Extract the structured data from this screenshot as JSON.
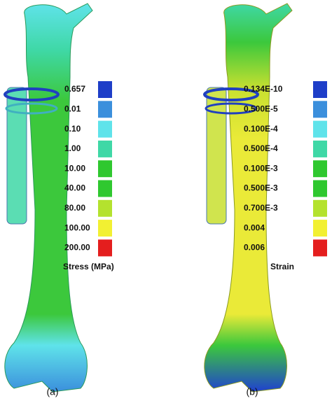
{
  "panels": [
    {
      "label": "(a)",
      "legend_title": "Stress (MPa)",
      "legend": [
        {
          "label": "0.657",
          "color": "#1e3ec8"
        },
        {
          "label": "0.01",
          "color": "#3b8fdc"
        },
        {
          "label": "0.10",
          "color": "#5fe3ea"
        },
        {
          "label": "1.00",
          "color": "#3fd8a6"
        },
        {
          "label": "10.00",
          "color": "#2fc82f"
        },
        {
          "label": "40.00",
          "color": "#2fc82f"
        },
        {
          "label": "80.00",
          "color": "#b4e22e"
        },
        {
          "label": "100.00",
          "color": "#f2f032"
        },
        {
          "label": "200.00",
          "color": "#e41e1e"
        }
      ]
    },
    {
      "label": "(b)",
      "legend_title": "Strain",
      "legend": [
        {
          "label": "0.134E-10",
          "color": "#1e3ec8"
        },
        {
          "label": "0.500E-5",
          "color": "#3b8fdc"
        },
        {
          "label": "0.100E-4",
          "color": "#5fe3ea"
        },
        {
          "label": "0.500E-4",
          "color": "#3fd8a6"
        },
        {
          "label": "0.100E-3",
          "color": "#2fc82f"
        },
        {
          "label": "0.500E-3",
          "color": "#2fc82f"
        },
        {
          "label": "0.700E-3",
          "color": "#b4e22e"
        },
        {
          "label": "0.004",
          "color": "#f2f032"
        },
        {
          "label": "0.006",
          "color": "#e41e1e"
        }
      ]
    }
  ]
}
